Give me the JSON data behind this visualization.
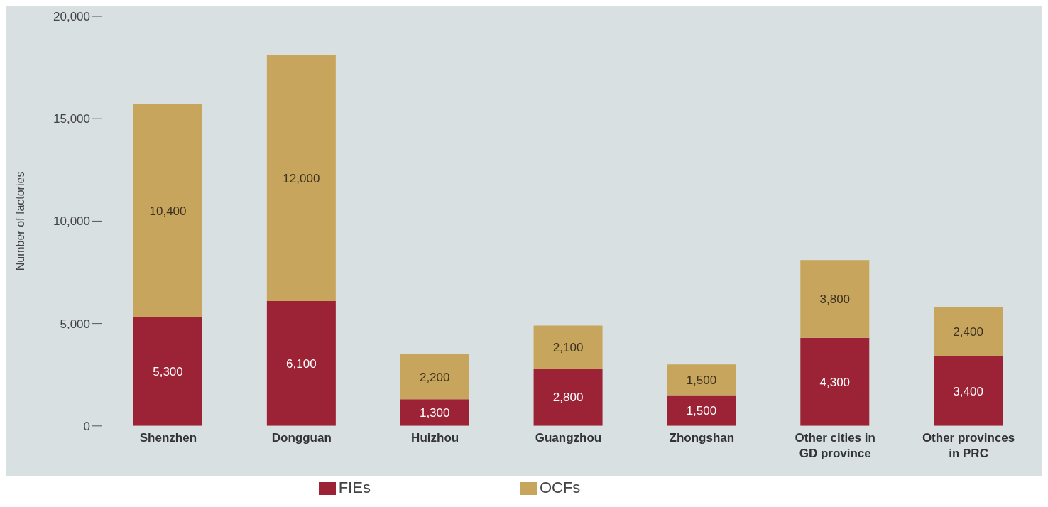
{
  "chart_data": {
    "type": "bar",
    "stacked": true,
    "ylabel": "Number of factories",
    "categories": [
      "Shenzhen",
      "Dongguan",
      "Huizhou",
      "Guangzhou",
      "Zhongshan",
      "Other cities in GD province",
      "Other provinces in PRC"
    ],
    "series": [
      {
        "name": "FIEs",
        "color": "#9b2335",
        "values": [
          5300,
          6100,
          1300,
          2800,
          1500,
          4300,
          3400
        ],
        "value_labels": [
          "5,300",
          "6,100",
          "1,300",
          "2,800",
          "1,500",
          "4,300",
          "3,400"
        ]
      },
      {
        "name": "OCFs",
        "color": "#c8a55c",
        "values": [
          10400,
          12000,
          2200,
          2100,
          1500,
          3800,
          2400
        ],
        "value_labels": [
          "10,400",
          "12,000",
          "2,200",
          "2,100",
          "1,500",
          "3,800",
          "2,400"
        ]
      }
    ],
    "ylim": [
      0,
      20000
    ],
    "yticks": [
      {
        "value": 0,
        "label": "0"
      },
      {
        "value": 5000,
        "label": "5,000"
      },
      {
        "value": 10000,
        "label": "10,000"
      },
      {
        "value": 15000,
        "label": "15,000"
      },
      {
        "value": 20000,
        "label": "20,000"
      }
    ],
    "grid": false,
    "legend": "bottom"
  }
}
